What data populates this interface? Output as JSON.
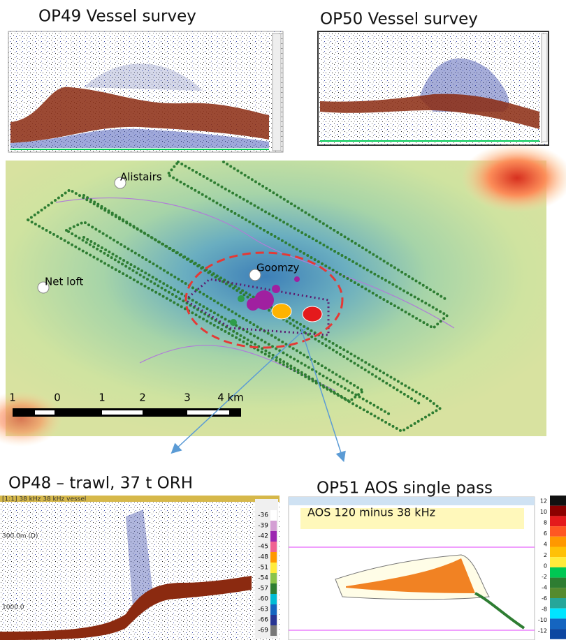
{
  "op49": {
    "title": "OP49 Vessel survey"
  },
  "op50": {
    "title": "OP50 Vessel survey"
  },
  "map": {
    "places": [
      "Alistairs",
      "Goomzy",
      "Net loft"
    ],
    "scale_labels": [
      "1",
      "0",
      "1",
      "2",
      "3",
      "4 km"
    ]
  },
  "op48": {
    "title": "OP48 – trawl, 37 t ORH",
    "header": "[1:1] 38 kHz 38 kHz vessel",
    "depth_labels": [
      "300.0m (D)",
      "1000.0"
    ],
    "scale_labels": [
      "-36",
      "-39",
      "-42",
      "-45",
      "-48",
      "-51",
      "-54",
      "-57",
      "-60",
      "-63",
      "-66",
      "-69"
    ]
  },
  "op51": {
    "title": "OP51 AOS single pass",
    "subtitle": "AOS 120 minus 38 kHz",
    "colorbar_labels": [
      "12",
      "10",
      "8",
      "6",
      "4",
      "2",
      "0",
      "-2",
      "-4",
      "-6",
      "-8",
      "-10",
      "-12"
    ]
  }
}
